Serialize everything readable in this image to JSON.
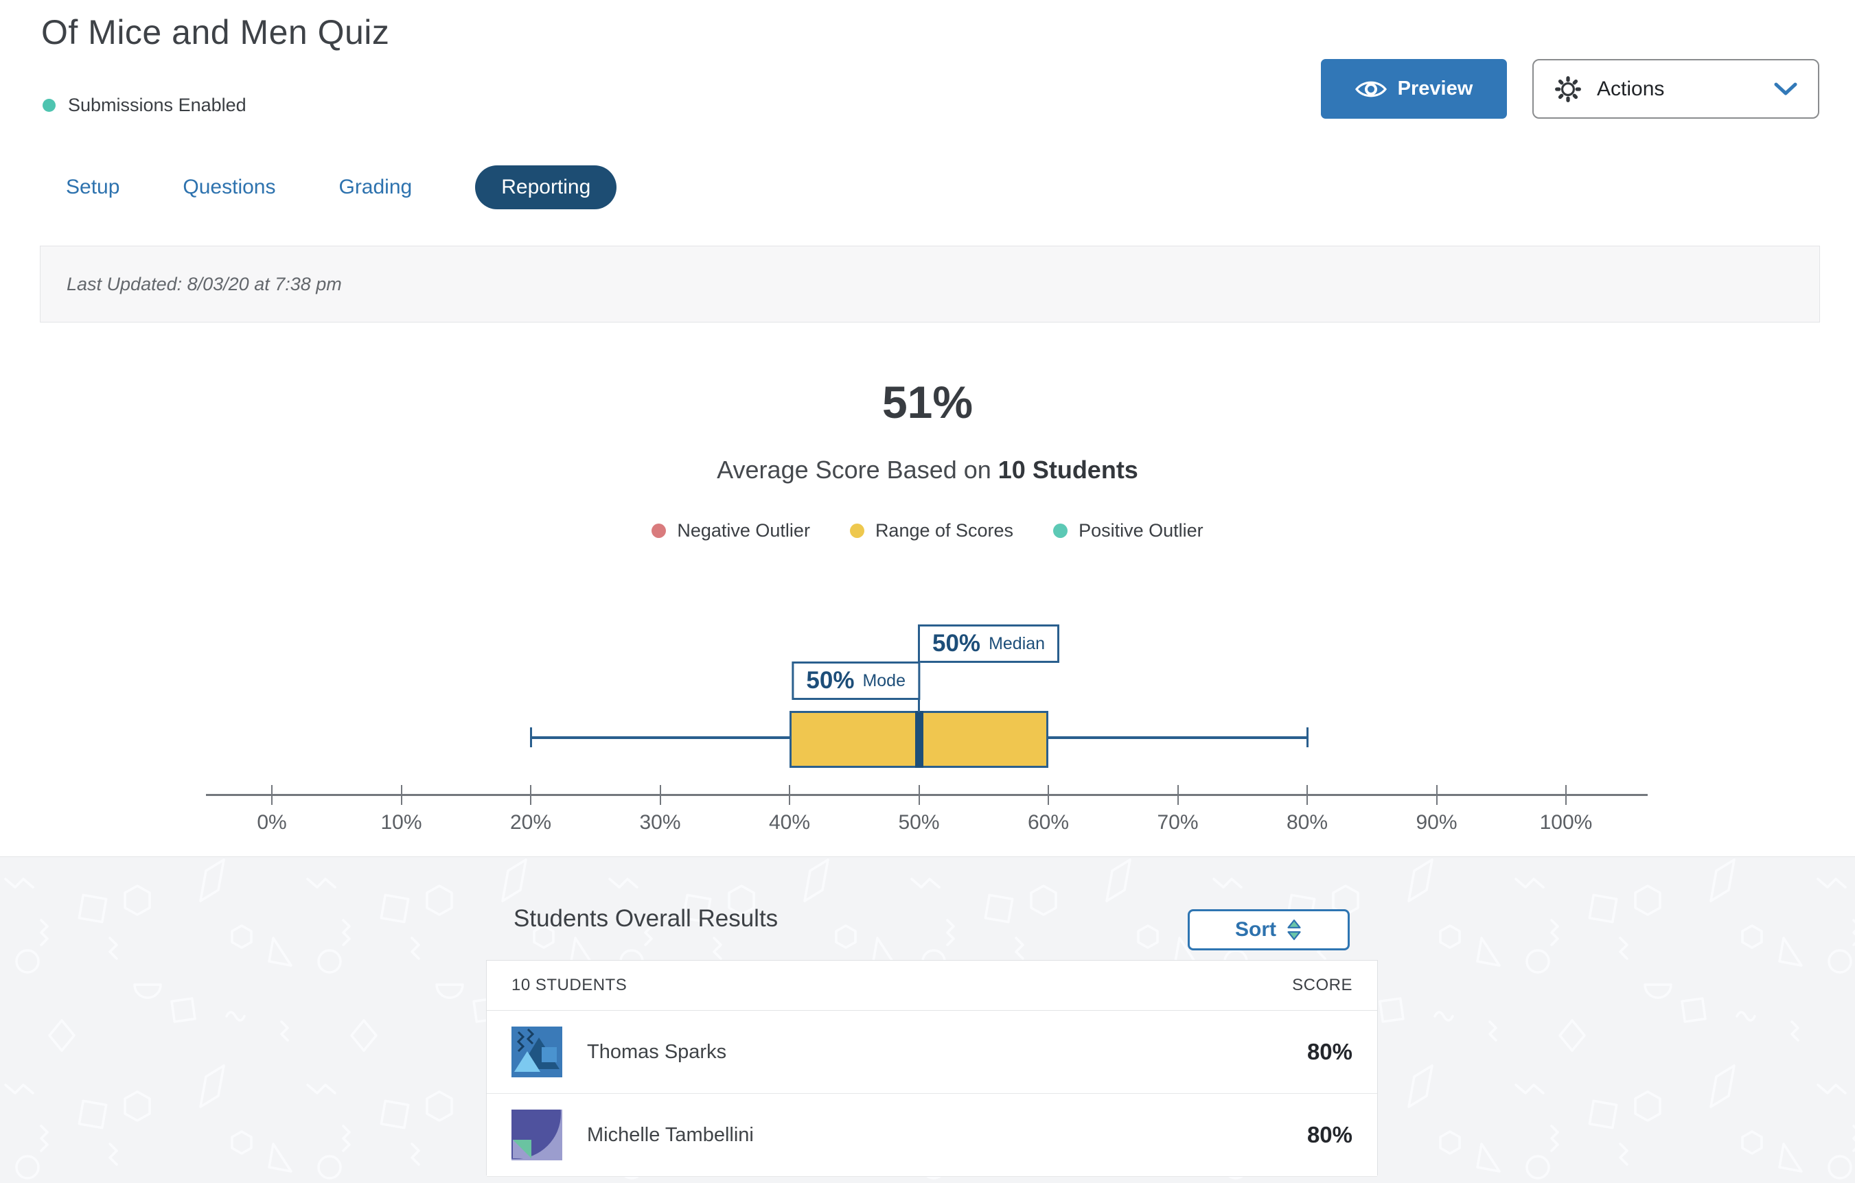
{
  "page": {
    "title": "Of Mice and Men Quiz",
    "status": {
      "label": "Submissions Enabled",
      "color": "#4ec4b0"
    }
  },
  "toolbar": {
    "preview_label": "Preview",
    "actions_label": "Actions"
  },
  "tabs": [
    {
      "label": "Setup",
      "active": false
    },
    {
      "label": "Questions",
      "active": false
    },
    {
      "label": "Grading",
      "active": false
    },
    {
      "label": "Reporting",
      "active": true
    }
  ],
  "last_updated": "Last Updated: 8/03/20 at 7:38 pm",
  "summary": {
    "average_score": "51%",
    "subtitle_prefix": "Average Score Based on ",
    "subtitle_bold": "10 Students"
  },
  "legend": [
    {
      "label": "Negative Outlier",
      "color": "#d97b7d"
    },
    {
      "label": "Range of Scores",
      "color": "#eec84e"
    },
    {
      "label": "Positive Outlier",
      "color": "#5cc9b5"
    }
  ],
  "chart_data": {
    "type": "boxplot",
    "unit": "%",
    "min": 20,
    "q1": 40,
    "median": 50,
    "q3": 60,
    "max": 80,
    "mode": 50,
    "median_label": {
      "value": "50%",
      "label": "Median"
    },
    "mode_label": {
      "value": "50%",
      "label": "Mode"
    },
    "axis_ticks": [
      "0%",
      "10%",
      "20%",
      "30%",
      "40%",
      "50%",
      "60%",
      "70%",
      "80%",
      "90%",
      "100%"
    ],
    "axis_range": [
      0,
      100
    ],
    "box_color": "#f0c64f",
    "line_color": "#2a5f8e",
    "median_color": "#1d4e79"
  },
  "results": {
    "heading": "Students Overall Results",
    "sort_label": "Sort",
    "table": {
      "col_students": "10 STUDENTS",
      "col_score": "SCORE",
      "rows": [
        {
          "name": "Thomas Sparks",
          "score": "80%"
        },
        {
          "name": "Michelle Tambellini",
          "score": "80%"
        }
      ]
    }
  },
  "colors": {
    "primary_blue": "#3177b7",
    "active_tab_navy": "#1d4d73",
    "link_blue": "#2d72ae",
    "section_bg": "#f3f4f6"
  }
}
